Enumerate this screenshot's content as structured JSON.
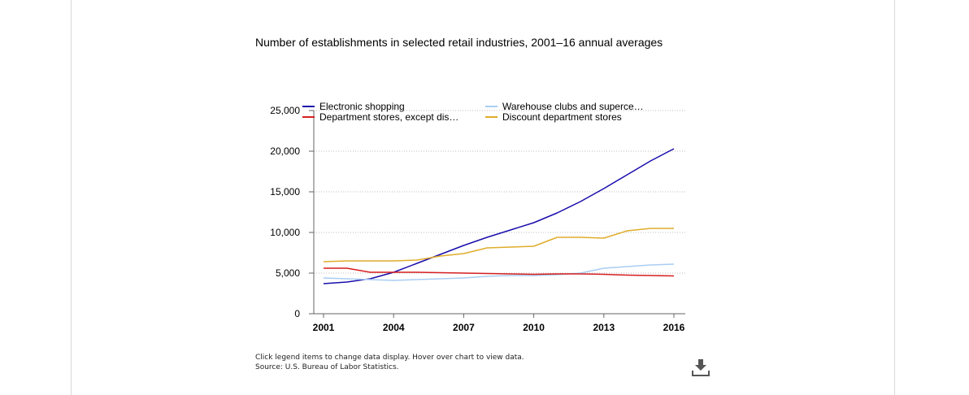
{
  "chart_data": {
    "type": "line",
    "title": "Number of establishments in selected retail industries, 2001–16 annual averages",
    "xlabel": "",
    "ylabel": "",
    "x": [
      2001,
      2002,
      2003,
      2004,
      2005,
      2006,
      2007,
      2008,
      2009,
      2010,
      2011,
      2012,
      2013,
      2014,
      2015,
      2016
    ],
    "x_ticks": [
      "2001",
      "2004",
      "2007",
      "2010",
      "2013",
      "2016"
    ],
    "y_ticks": [
      "0",
      "5,000",
      "10,000",
      "15,000",
      "20,000",
      "25,000"
    ],
    "xlim": [
      2001,
      2016
    ],
    "ylim": [
      0,
      25000
    ],
    "grid": "horizontal-dotted",
    "legend_position": "top",
    "series": [
      {
        "name": "Electronic shopping",
        "color": "#1a0dab",
        "values": [
          3700,
          3900,
          4300,
          5100,
          6200,
          7300,
          8400,
          9400,
          10300,
          11200,
          12400,
          13800,
          15400,
          17100,
          18800,
          20300
        ]
      },
      {
        "name": "Warehouse clubs and superce…",
        "color": "#a9cdf2",
        "values": [
          4400,
          4300,
          4200,
          4100,
          4200,
          4300,
          4400,
          4600,
          4700,
          4700,
          4800,
          5000,
          5600,
          5800,
          6000,
          6100
        ]
      },
      {
        "name": "Department stores, except dis…",
        "color": "#d61f1f",
        "values": [
          5600,
          5600,
          5100,
          5100,
          5100,
          5050,
          5000,
          4950,
          4900,
          4850,
          4900,
          4900,
          4850,
          4750,
          4700,
          4650
        ]
      },
      {
        "name": "Discount department stores",
        "color": "#e0ac2b",
        "values": [
          6400,
          6500,
          6500,
          6500,
          6600,
          7100,
          7400,
          8100,
          8200,
          8300,
          9400,
          9400,
          9300,
          10200,
          10500,
          10500
        ]
      }
    ]
  },
  "footer": {
    "note": "Click legend items to change data display. Hover over chart to view data.",
    "source": "Source: U.S. Bureau of Labor Statistics."
  },
  "icons": {
    "download": "download-icon"
  }
}
